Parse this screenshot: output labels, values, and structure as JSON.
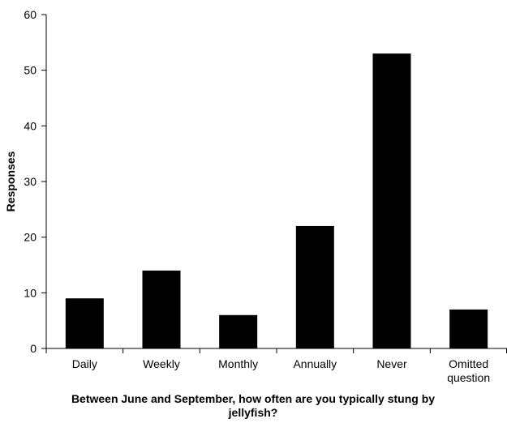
{
  "chart_data": {
    "type": "bar",
    "categories": [
      "Daily",
      "Weekly",
      "Monthly",
      "Annually",
      "Never",
      "Omitted question"
    ],
    "category_lines": [
      [
        "Daily"
      ],
      [
        "Weekly"
      ],
      [
        "Monthly"
      ],
      [
        "Annually"
      ],
      [
        "Never"
      ],
      [
        "Omitted",
        "question"
      ]
    ],
    "values": [
      9,
      14,
      6,
      22,
      53,
      7
    ],
    "title": "",
    "xlabel": "Between June and September, how often are you typically stung by jellyfish?",
    "xlabel_lines": [
      "Between June and September, how often are you typically stung by",
      "jellyfish?"
    ],
    "ylabel": "Responses",
    "ylim": [
      0,
      60
    ],
    "yticks": [
      0,
      10,
      20,
      30,
      40,
      50,
      60
    ],
    "grid": false,
    "legend": "none",
    "bar_color": "#000000"
  }
}
